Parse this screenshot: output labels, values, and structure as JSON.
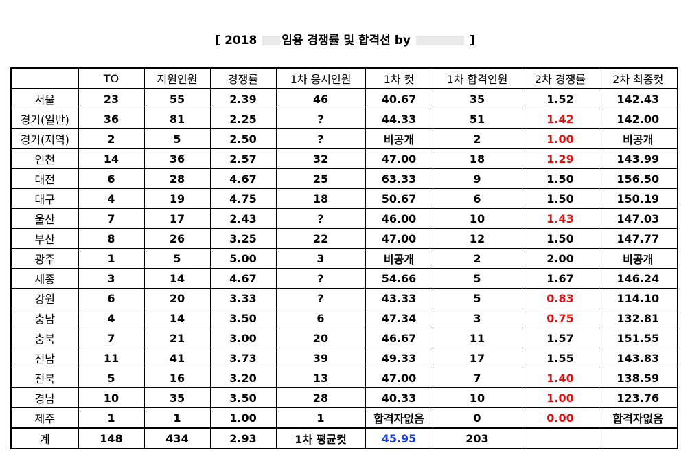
{
  "title": {
    "prefix": "[ 2018 ",
    "middle": "임용 경쟁률 및 합격선 by ",
    "suffix": " ]"
  },
  "headers": [
    "",
    "TO",
    "지원인원",
    "경쟁률",
    "1차 응시인원",
    "1차 컷",
    "1차 합격인원",
    "2차 경쟁률",
    "2차 최종컷"
  ],
  "rows": [
    {
      "region": "서울",
      "to": "23",
      "applicants": "55",
      "ratio": "2.39",
      "first_takers": "46",
      "first_cut": "40.67",
      "first_passed": "35",
      "second_ratio": "1.52",
      "second_cut": "142.43",
      "highlight": false
    },
    {
      "region": "경기(일반)",
      "to": "36",
      "applicants": "81",
      "ratio": "2.25",
      "first_takers": "?",
      "first_cut": "44.33",
      "first_passed": "51",
      "second_ratio": "1.42",
      "second_cut": "142.00",
      "highlight": true
    },
    {
      "region": "경기(지역)",
      "to": "2",
      "applicants": "5",
      "ratio": "2.50",
      "first_takers": "?",
      "first_cut": "비공개",
      "first_passed": "2",
      "second_ratio": "1.00",
      "second_cut": "비공개",
      "highlight": true
    },
    {
      "region": "인천",
      "to": "14",
      "applicants": "36",
      "ratio": "2.57",
      "first_takers": "32",
      "first_cut": "47.00",
      "first_passed": "18",
      "second_ratio": "1.29",
      "second_cut": "143.99",
      "highlight": true
    },
    {
      "region": "대전",
      "to": "6",
      "applicants": "28",
      "ratio": "4.67",
      "first_takers": "25",
      "first_cut": "63.33",
      "first_passed": "9",
      "second_ratio": "1.50",
      "second_cut": "156.50",
      "highlight": false
    },
    {
      "region": "대구",
      "to": "4",
      "applicants": "19",
      "ratio": "4.75",
      "first_takers": "18",
      "first_cut": "50.67",
      "first_passed": "6",
      "second_ratio": "1.50",
      "second_cut": "150.19",
      "highlight": false
    },
    {
      "region": "울산",
      "to": "7",
      "applicants": "17",
      "ratio": "2.43",
      "first_takers": "?",
      "first_cut": "46.00",
      "first_passed": "10",
      "second_ratio": "1.43",
      "second_cut": "147.03",
      "highlight": true
    },
    {
      "region": "부산",
      "to": "8",
      "applicants": "26",
      "ratio": "3.25",
      "first_takers": "22",
      "first_cut": "47.00",
      "first_passed": "12",
      "second_ratio": "1.50",
      "second_cut": "147.77",
      "highlight": false
    },
    {
      "region": "광주",
      "to": "1",
      "applicants": "5",
      "ratio": "5.00",
      "first_takers": "3",
      "first_cut": "비공개",
      "first_passed": "2",
      "second_ratio": "2.00",
      "second_cut": "비공개",
      "highlight": false
    },
    {
      "region": "세종",
      "to": "3",
      "applicants": "14",
      "ratio": "4.67",
      "first_takers": "?",
      "first_cut": "54.66",
      "first_passed": "5",
      "second_ratio": "1.67",
      "second_cut": "146.24",
      "highlight": false
    },
    {
      "region": "강원",
      "to": "6",
      "applicants": "20",
      "ratio": "3.33",
      "first_takers": "?",
      "first_cut": "43.33",
      "first_passed": "5",
      "second_ratio": "0.83",
      "second_cut": "114.10",
      "highlight": true
    },
    {
      "region": "충남",
      "to": "4",
      "applicants": "14",
      "ratio": "3.50",
      "first_takers": "6",
      "first_cut": "47.34",
      "first_passed": "3",
      "second_ratio": "0.75",
      "second_cut": "132.81",
      "highlight": true
    },
    {
      "region": "충북",
      "to": "7",
      "applicants": "21",
      "ratio": "3.00",
      "first_takers": "20",
      "first_cut": "46.67",
      "first_passed": "11",
      "second_ratio": "1.57",
      "second_cut": "151.55",
      "highlight": false
    },
    {
      "region": "전남",
      "to": "11",
      "applicants": "41",
      "ratio": "3.73",
      "first_takers": "39",
      "first_cut": "49.33",
      "first_passed": "17",
      "second_ratio": "1.55",
      "second_cut": "143.83",
      "highlight": false
    },
    {
      "region": "전북",
      "to": "5",
      "applicants": "16",
      "ratio": "3.20",
      "first_takers": "13",
      "first_cut": "47.00",
      "first_passed": "7",
      "second_ratio": "1.40",
      "second_cut": "138.59",
      "highlight": true
    },
    {
      "region": "경남",
      "to": "10",
      "applicants": "35",
      "ratio": "3.50",
      "first_takers": "28",
      "first_cut": "40.33",
      "first_passed": "10",
      "second_ratio": "1.00",
      "second_cut": "123.76",
      "highlight": true
    },
    {
      "region": "제주",
      "to": "1",
      "applicants": "1",
      "ratio": "1.00",
      "first_takers": "1",
      "first_cut": "합격자없음",
      "first_passed": "0",
      "second_ratio": "0.00",
      "second_cut": "합격자없음",
      "highlight": true
    }
  ],
  "total": {
    "label": "계",
    "to": "148",
    "applicants": "434",
    "ratio": "2.93",
    "avg_label": "1차 평균컷",
    "avg_cut": "45.95",
    "first_passed": "203",
    "second_ratio": "",
    "second_cut": ""
  },
  "colors": {
    "highlight": "#e01010",
    "average": "#1a3fd6",
    "border": "#000000"
  }
}
